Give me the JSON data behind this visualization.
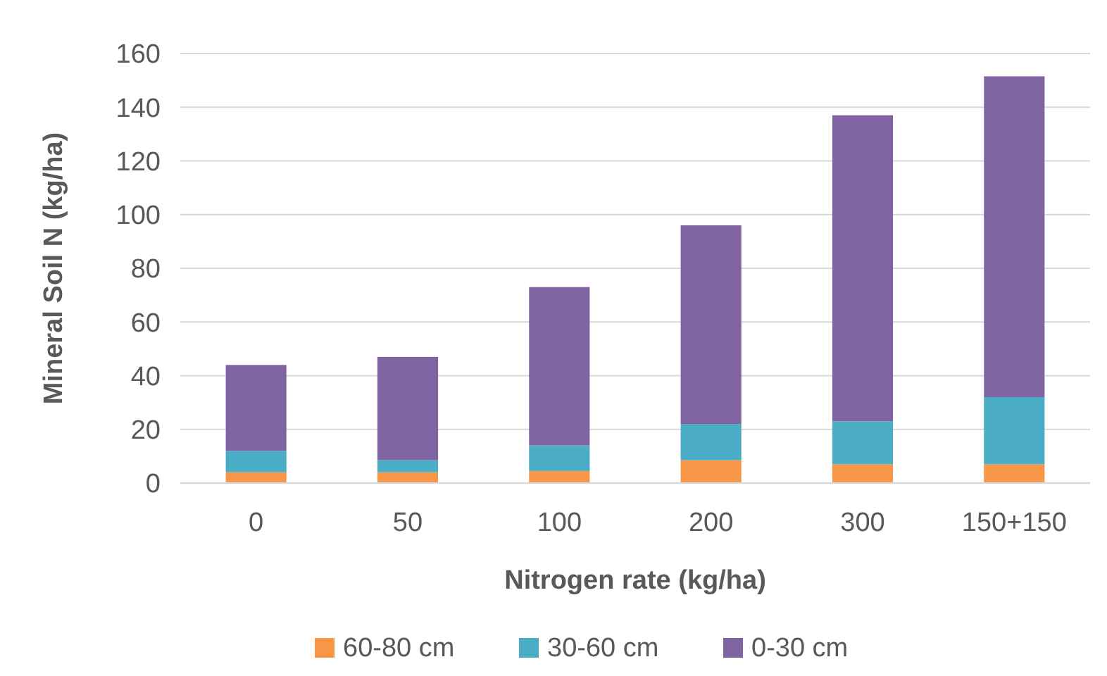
{
  "chart_data": {
    "type": "bar",
    "stacked": true,
    "xlabel": "Nitrogen rate (kg/ha)",
    "ylabel": "Mineral Soil N (kg/ha)",
    "categories": [
      "0",
      "50",
      "100",
      "200",
      "300",
      "150+150"
    ],
    "series": [
      {
        "name": "60-80 cm",
        "color": "#f79646",
        "values": [
          4,
          4,
          4.5,
          8.5,
          7,
          7
        ]
      },
      {
        "name": "30-60 cm",
        "color": "#4bacc6",
        "values": [
          8,
          4.5,
          9.5,
          13.5,
          16,
          25
        ]
      },
      {
        "name": "0-30 cm",
        "color": "#8064a2",
        "values": [
          32,
          38.5,
          59,
          74,
          114,
          119.5
        ]
      }
    ],
    "ylim": [
      0,
      160
    ],
    "yticks": [
      0,
      20,
      40,
      60,
      80,
      100,
      120,
      140,
      160
    ],
    "grid": "y",
    "legend": "bottom"
  }
}
